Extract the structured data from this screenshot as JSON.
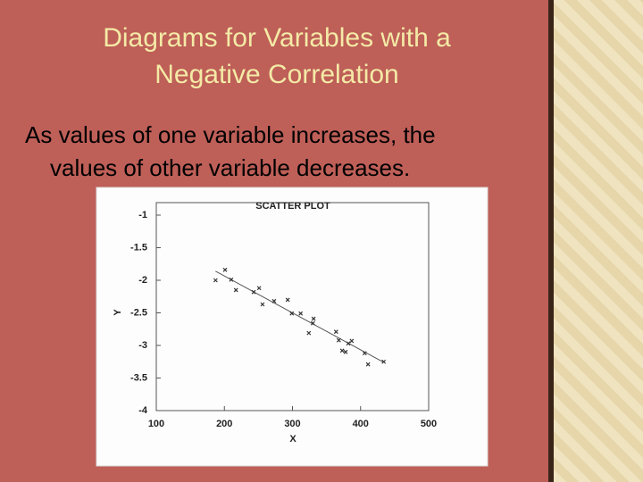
{
  "slide": {
    "title": [
      "Diagrams for Variables with a",
      "Negative Correlation"
    ],
    "body": [
      "As values of one variable increases, the",
      "values of other variable decreases."
    ]
  },
  "chart_data": {
    "type": "scatter",
    "title": "SCATTER PLOT",
    "x_label": "X",
    "y_label": "Y",
    "x": [
      187,
      201,
      210,
      217,
      243,
      251,
      256,
      273,
      293,
      299,
      312,
      324,
      331,
      330,
      364,
      368,
      373,
      378,
      382,
      387,
      406,
      411,
      434
    ],
    "y": [
      -2.0,
      -1.84,
      -1.99,
      -2.15,
      -2.18,
      -2.12,
      -2.37,
      -2.32,
      -2.3,
      -2.51,
      -2.51,
      -2.81,
      -2.59,
      -2.66,
      -2.79,
      -2.92,
      -3.08,
      -3.1,
      -2.97,
      -2.93,
      -3.12,
      -3.29,
      -3.25
    ],
    "color": "#333333",
    "fit_line": {
      "x": [
        187,
        434
      ],
      "y": [
        -1.86,
        -3.26
      ]
    },
    "xlim": [
      100,
      500
    ],
    "xticks": [
      100,
      200,
      300,
      400,
      500
    ],
    "ylim": [
      -4,
      -1
    ],
    "yticks": [
      -1,
      -1.5,
      -2,
      -2.5,
      -3,
      -3.5,
      -4
    ]
  }
}
